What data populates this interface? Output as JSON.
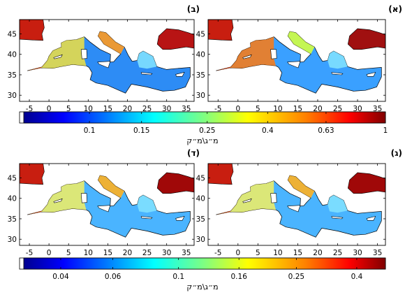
{
  "chart_data": [
    {
      "type": "heatmap",
      "panel_label": "(א)",
      "region": "Mediterranean Sea",
      "x_ticks": [
        -5,
        0,
        5,
        10,
        15,
        20,
        25,
        30,
        35
      ],
      "y_ticks": [
        30,
        35,
        40,
        45
      ],
      "xlim": [
        -7.5,
        37
      ],
      "ylim": [
        28.5,
        48.5
      ],
      "colorbar": "top"
    },
    {
      "type": "heatmap",
      "panel_label": "(ב)",
      "region": "Mediterranean Sea",
      "x_ticks": [
        -5,
        0,
        5,
        10,
        15,
        20,
        25,
        30,
        35
      ],
      "y_ticks": [
        30,
        35,
        40,
        45
      ],
      "xlim": [
        -7.5,
        37
      ],
      "ylim": [
        28.5,
        48.5
      ],
      "colorbar": "top"
    },
    {
      "type": "heatmap",
      "panel_label": "(ג)",
      "region": "Mediterranean Sea",
      "x_ticks": [
        -5,
        0,
        5,
        10,
        15,
        20,
        25,
        30,
        35
      ],
      "y_ticks": [
        30,
        35,
        40,
        45
      ],
      "xlim": [
        -7.5,
        37
      ],
      "ylim": [
        28.5,
        48.5
      ],
      "colorbar": "bottom"
    },
    {
      "type": "heatmap",
      "panel_label": "(ד)",
      "region": "Mediterranean Sea",
      "x_ticks": [
        -5,
        0,
        5,
        10,
        15,
        20,
        25,
        30,
        35
      ],
      "y_ticks": [
        30,
        35,
        40,
        45
      ],
      "xlim": [
        -7.5,
        37
      ],
      "ylim": [
        28.5,
        48.5
      ],
      "colorbar": "bottom"
    }
  ],
  "colorbars": {
    "top": {
      "unit_label": "מ״ג\\מ״ק",
      "scale": "log",
      "range": [
        0.06,
        1
      ],
      "ticks": [
        "0.1",
        "0.15",
        "0.25",
        "0.4",
        "0.63",
        "1"
      ],
      "tick_values": [
        0.1,
        0.15,
        0.25,
        0.4,
        0.63,
        1
      ]
    },
    "bottom": {
      "unit_label": "מ״ג\\מ״ק",
      "scale": "log",
      "range": [
        0.03,
        0.5
      ],
      "ticks": [
        "0.04",
        "0.06",
        "0.1",
        "0.16",
        "0.25",
        "0.4"
      ],
      "tick_values": [
        0.04,
        0.06,
        0.1,
        0.16,
        0.25,
        0.4
      ]
    }
  },
  "colors": {
    "colormap": [
      "#00008f",
      "#0000ff",
      "#0080ff",
      "#00ffff",
      "#80ff80",
      "#ffff00",
      "#ff8000",
      "#ff0000",
      "#800000"
    ],
    "land": "#ffffff",
    "low_sea": "#2a7fff",
    "high_land_region": "#8b0000"
  }
}
